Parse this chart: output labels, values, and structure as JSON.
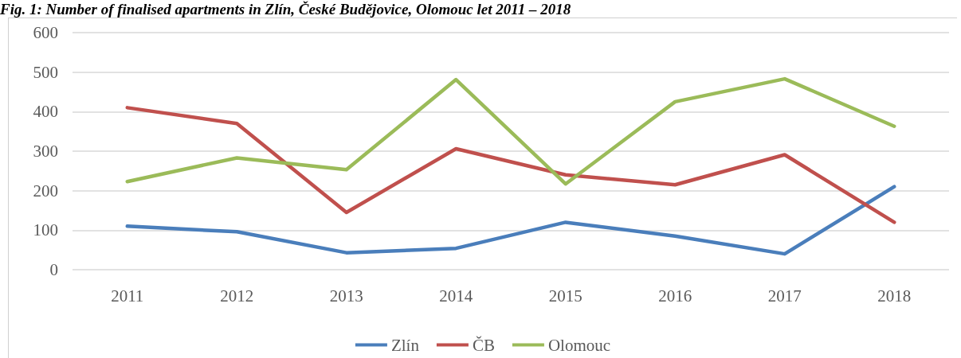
{
  "chart_data": {
    "type": "line",
    "title": "Fig. 1: Number of finalised apartments in Zlín, České Budějovice, Olomouc let 2011 – 2018",
    "categories": [
      "2011",
      "2012",
      "2013",
      "2014",
      "2015",
      "2016",
      "2017",
      "2018"
    ],
    "series": [
      {
        "name": "Zlín",
        "color": "#4a7ebb",
        "values": [
          110,
          96,
          43,
          54,
          120,
          85,
          40,
          210
        ]
      },
      {
        "name": "ČB",
        "color": "#c0504d",
        "values": [
          410,
          370,
          145,
          306,
          240,
          215,
          291,
          120
        ]
      },
      {
        "name": "Olomouc",
        "color": "#9bbb59",
        "values": [
          223,
          283,
          253,
          481,
          217,
          425,
          483,
          363
        ]
      }
    ],
    "ylim": [
      0,
      600
    ],
    "yticks": [
      0,
      100,
      200,
      300,
      400,
      500,
      600
    ],
    "grid": "y",
    "legend": "bottom",
    "marker": "none",
    "line_style": "solid"
  }
}
